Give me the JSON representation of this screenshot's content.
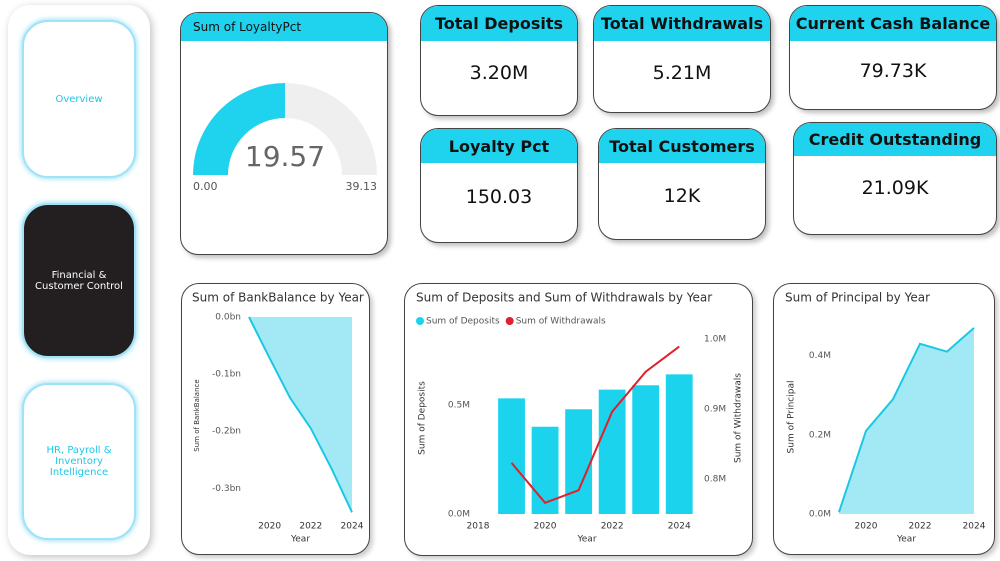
{
  "nav": [
    "Overview",
    "Financial & Customer Control",
    "HR, Payroll & Inventory Intelligence"
  ],
  "gauge": {
    "title": "Sum of LoyaltyPct",
    "value": 19.57,
    "min": {
      "value": 0,
      "label": "0.00"
    },
    "max": 39.13
  },
  "cards": [
    {
      "title": "Total Deposits",
      "value": "3.20M"
    },
    {
      "title": "Total Withdrawals",
      "value": "5.21M"
    },
    {
      "title": "Current Cash Balance",
      "value": "79.73K"
    },
    {
      "title": "Loyalty Pct",
      "value": "150.03"
    },
    {
      "title": "Total Customers",
      "value": "12K"
    },
    {
      "title": "Credit Outstanding",
      "value": "21.09K"
    }
  ],
  "chart_data": [
    {
      "type": "area",
      "title": "Sum of BankBalance by Year",
      "x": [
        2019,
        2020,
        2021,
        2022,
        2023,
        2024
      ],
      "values": [
        0,
        -0.072,
        -0.142,
        -0.195,
        -0.265,
        -0.342
      ],
      "color": "#1ac8e6",
      "xlim": [
        2019,
        2024
      ],
      "xticks": [
        2020,
        2022,
        2024
      ],
      "ylim": [
        -0.345,
        0
      ],
      "yticks": [
        {
          "value": 0,
          "label": "0.0bn"
        },
        {
          "value": -0.1,
          "label": "-0.1bn"
        },
        {
          "value": -0.2,
          "label": "-0.2bn"
        },
        {
          "value": -0.3,
          "label": "-0.3bn"
        }
      ],
      "xlabel": "Year",
      "ylabel": "Sum of BankBalance"
    },
    {
      "type": "combo",
      "title": "Sum of Deposits and Sum of Withdrawals by Year",
      "x": [
        2019,
        2020,
        2021,
        2022,
        2023,
        2024
      ],
      "series": [
        {
          "name": "Sum of Deposits",
          "type": "bar",
          "color": "#1cd3ee",
          "values": [
            0.53,
            0.4,
            0.48,
            0.57,
            0.59,
            0.64
          ]
        },
        {
          "name": "Sum of Withdrawals",
          "type": "line",
          "axis": "y2",
          "color": "#e0202a",
          "values": [
            0.823,
            0.766,
            0.784,
            0.896,
            0.953,
            0.989
          ]
        }
      ],
      "xlim": [
        2018,
        2024.5
      ],
      "xticks": [
        2018,
        2020,
        2022,
        2024
      ],
      "ylim": [
        0,
        0.88
      ],
      "yticks": [
        {
          "value": 0,
          "label": "0.0M"
        },
        {
          "value": 0.5,
          "label": "0.5M"
        }
      ],
      "y2lim": [
        0.75,
        1.024
      ],
      "y2ticks": [
        {
          "value": 0.8,
          "label": "0.8M"
        },
        {
          "value": 0.9,
          "label": "0.9M"
        },
        {
          "value": 1.0,
          "label": "1.0M"
        }
      ],
      "xlabel": "Year",
      "ylabel": "Sum of Deposits",
      "y2label": "Sum of Withdrawals",
      "legend": "top-left"
    },
    {
      "type": "area",
      "title": "Sum of Principal by Year",
      "x": [
        2019,
        2020,
        2021,
        2022,
        2023,
        2024
      ],
      "values": [
        0.005,
        0.21,
        0.29,
        0.43,
        0.41,
        0.47
      ],
      "color": "#1ac8e6",
      "xlim": [
        2019,
        2024
      ],
      "xticks": [
        2020,
        2022,
        2024
      ],
      "ylim": [
        0,
        0.49
      ],
      "yticks": [
        {
          "value": 0,
          "label": "0.0M"
        },
        {
          "value": 0.2,
          "label": "0.2M"
        },
        {
          "value": 0.4,
          "label": "0.4M"
        }
      ],
      "xlabel": "Year",
      "ylabel": "Sum of Principal"
    }
  ]
}
